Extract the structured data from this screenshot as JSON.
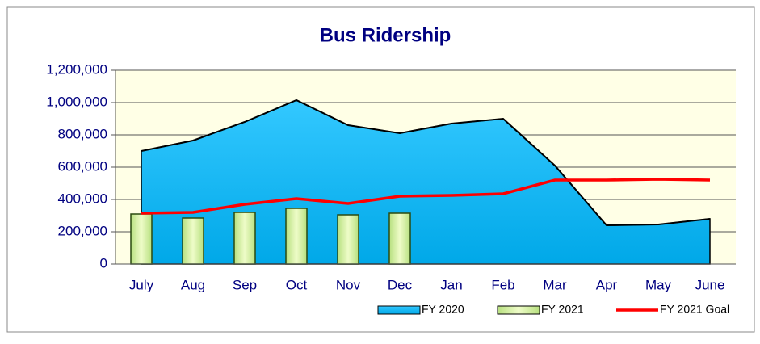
{
  "chart_data": {
    "type": "combo",
    "title": "Bus Ridership",
    "categories": [
      "July",
      "Aug",
      "Sep",
      "Oct",
      "Nov",
      "Dec",
      "Jan",
      "Feb",
      "Mar",
      "Apr",
      "May",
      "June"
    ],
    "series": [
      {
        "name": "FY 2020",
        "type": "area",
        "color": "#00b4f0",
        "values": [
          700000,
          765000,
          880000,
          1015000,
          860000,
          810000,
          870000,
          900000,
          610000,
          240000,
          245000,
          280000
        ]
      },
      {
        "name": "FY 2021",
        "type": "bar",
        "color": "#ccee99",
        "values": [
          310000,
          285000,
          320000,
          345000,
          305000,
          315000,
          null,
          null,
          null,
          null,
          null,
          null
        ]
      },
      {
        "name": "FY 2021 Goal",
        "type": "line",
        "color": "#ff0000",
        "values": [
          315000,
          320000,
          370000,
          405000,
          375000,
          420000,
          425000,
          435000,
          520000,
          520000,
          525000,
          520000
        ]
      }
    ],
    "ylim": [
      0,
      1200000
    ],
    "yticks": [
      0,
      {
        "value": 200000,
        "label": "200,000"
      },
      {
        "value": 400000,
        "label": "400,000"
      },
      {
        "value": 600000,
        "label": "600,000"
      },
      {
        "value": 800000,
        "label": "800,000"
      },
      {
        "value": 1000000,
        "label": "1,000,000"
      },
      {
        "value": 1200000,
        "label": "1,200,000"
      }
    ],
    "grid": true,
    "legend": "bottom"
  }
}
